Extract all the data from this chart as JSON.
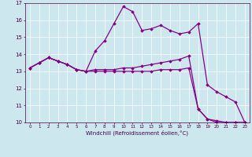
{
  "xlabel": "Windchill (Refroidissement éolien,°C)",
  "xlim": [
    -0.5,
    23.5
  ],
  "ylim": [
    10,
    17
  ],
  "yticks": [
    10,
    11,
    12,
    13,
    14,
    15,
    16,
    17
  ],
  "xticks": [
    0,
    1,
    2,
    3,
    4,
    5,
    6,
    7,
    8,
    9,
    10,
    11,
    12,
    13,
    14,
    15,
    16,
    17,
    18,
    19,
    20,
    21,
    22,
    23
  ],
  "line_color": "#880088",
  "bg_color": "#cce8ee",
  "series": [
    [
      13.2,
      13.5,
      13.8,
      13.6,
      13.4,
      13.1,
      13.0,
      14.2,
      14.8,
      15.8,
      16.8,
      16.5,
      15.4,
      15.5,
      15.7,
      15.4,
      15.2,
      15.3,
      15.8,
      12.2,
      11.8,
      11.5,
      11.2,
      10.0
    ],
    [
      13.2,
      13.5,
      13.8,
      13.6,
      13.4,
      13.1,
      13.0,
      13.0,
      13.0,
      13.0,
      13.0,
      13.0,
      13.0,
      13.0,
      13.1,
      13.1,
      13.1,
      13.2,
      10.8,
      10.2,
      10.1,
      10.0,
      10.0,
      10.0
    ],
    [
      13.2,
      13.5,
      13.8,
      13.6,
      13.4,
      13.1,
      13.0,
      13.1,
      13.1,
      13.1,
      13.2,
      13.2,
      13.3,
      13.4,
      13.5,
      13.6,
      13.7,
      13.9,
      10.8,
      10.2,
      10.0,
      10.0,
      10.0,
      10.0
    ]
  ]
}
